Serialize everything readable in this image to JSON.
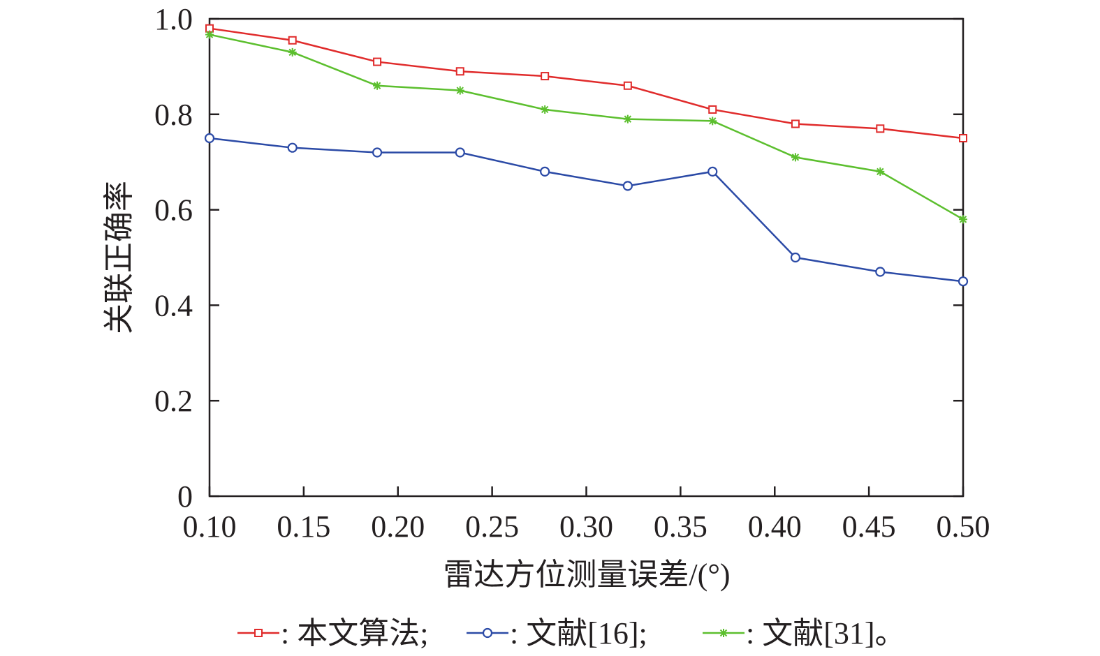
{
  "chart_data": {
    "type": "line",
    "title": "",
    "xlabel": "雷达方位测量误差/(°)",
    "ylabel": "关联正确率",
    "xlim": [
      0.1,
      0.5
    ],
    "ylim": [
      0,
      1.0
    ],
    "xticks": [
      "0.10",
      "0.15",
      "0.20",
      "0.25",
      "0.30",
      "0.35",
      "0.40",
      "0.45",
      "0.50"
    ],
    "xtick_values": [
      0.1,
      0.15,
      0.2,
      0.25,
      0.3,
      0.35,
      0.4,
      0.45,
      0.5
    ],
    "yticks": [
      "0",
      "0.2",
      "0.4",
      "0.6",
      "0.8",
      "1.0"
    ],
    "ytick_values": [
      0,
      0.2,
      0.4,
      0.6,
      0.8,
      1.0
    ],
    "grid": false,
    "legend_position": "bottom",
    "x": [
      0.1,
      0.144,
      0.189,
      0.233,
      0.278,
      0.322,
      0.367,
      0.411,
      0.456,
      0.5
    ],
    "series": [
      {
        "name": "本文算法",
        "legend_label": ": 本文算法;",
        "color": "#e02b2b",
        "marker": "square",
        "values": [
          0.98,
          0.955,
          0.91,
          0.89,
          0.88,
          0.86,
          0.81,
          0.78,
          0.77,
          0.75
        ]
      },
      {
        "name": "文献[16]",
        "legend_label": ": 文献[16];",
        "color": "#2b4aa6",
        "marker": "circle",
        "values": [
          0.75,
          0.73,
          0.72,
          0.72,
          0.68,
          0.65,
          0.68,
          0.5,
          0.47,
          0.45
        ]
      },
      {
        "name": "文献[31]",
        "legend_label": ": 文献[31]。",
        "color": "#5cbf2e",
        "marker": "star",
        "values": [
          0.967,
          0.93,
          0.86,
          0.85,
          0.81,
          0.79,
          0.786,
          0.71,
          0.68,
          0.58
        ]
      }
    ]
  }
}
